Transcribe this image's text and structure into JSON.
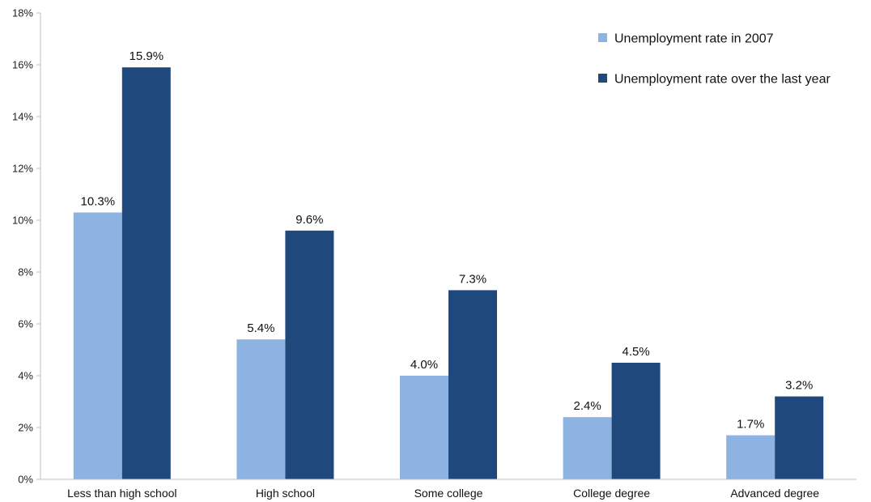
{
  "chart_data": {
    "type": "bar",
    "categories": [
      "Less than high school",
      "High school",
      "Some college",
      "College degree",
      "Advanced degree"
    ],
    "series": [
      {
        "name": "Unemployment rate in 2007",
        "color": "#8DB3E2",
        "values": [
          10.3,
          5.4,
          4.0,
          2.4,
          1.7
        ],
        "labels": [
          "10.3%",
          "5.4%",
          "4.0%",
          "2.4%",
          "1.7%"
        ]
      },
      {
        "name": "Unemployment rate over the last year",
        "color": "#1F497D",
        "values": [
          15.9,
          9.6,
          7.3,
          4.5,
          3.2
        ],
        "labels": [
          "15.9%",
          "9.6%",
          "7.3%",
          "4.5%",
          "3.2%"
        ]
      }
    ],
    "ylim": [
      0,
      18
    ],
    "yticks": [
      0,
      2,
      4,
      6,
      8,
      10,
      12,
      14,
      16,
      18
    ],
    "ytick_labels": [
      "0%",
      "2%",
      "4%",
      "6%",
      "8%",
      "10%",
      "12%",
      "14%",
      "16%",
      "18%"
    ],
    "title": "",
    "xlabel": "",
    "ylabel": "",
    "grid": false,
    "legend_position": "top-right"
  }
}
